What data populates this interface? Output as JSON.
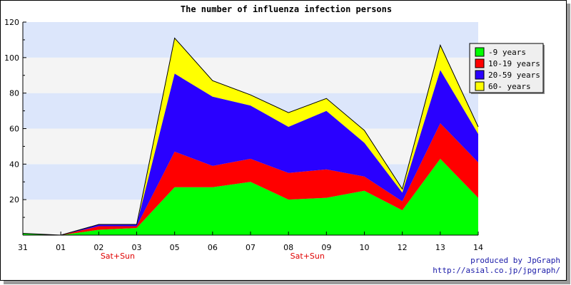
{
  "chart_data": {
    "type": "area",
    "stacked": true,
    "title": "The number of influenza infection persons",
    "categories": [
      "31",
      "01",
      "02",
      "03",
      "05",
      "06",
      "07",
      "08",
      "09",
      "10",
      "12",
      "13",
      "14"
    ],
    "annotations": [
      {
        "category": "02",
        "text": "Sat+Sun"
      },
      {
        "category": "08",
        "text": "Sat+Sun"
      }
    ],
    "ylim": [
      0,
      120
    ],
    "yticks": [
      20,
      40,
      60,
      80,
      100,
      120
    ],
    "legend_position": "top-right",
    "series": [
      {
        "name": "-9 years",
        "color": "#00ff00",
        "values": [
          1,
          0,
          3,
          4,
          27,
          27,
          30,
          20,
          21,
          25,
          14,
          43,
          21
        ]
      },
      {
        "name": "10-19 years",
        "color": "#ff0000",
        "values": [
          0,
          0,
          2,
          1,
          20,
          12,
          13,
          15,
          16,
          8,
          5,
          20,
          20
        ]
      },
      {
        "name": "20-59 years",
        "color": "#2a00ff",
        "values": [
          0,
          0,
          1,
          1,
          44,
          39,
          30,
          26,
          33,
          19,
          5,
          30,
          16
        ]
      },
      {
        "name": "60- years",
        "color": "#ffff00",
        "values": [
          0,
          0,
          0,
          0,
          20,
          9,
          6,
          8,
          7,
          7,
          2,
          14,
          4
        ]
      }
    ]
  },
  "footer": {
    "line1": "produced by JpGraph",
    "line2": "http://asial.co.jp/jpgraph/"
  }
}
